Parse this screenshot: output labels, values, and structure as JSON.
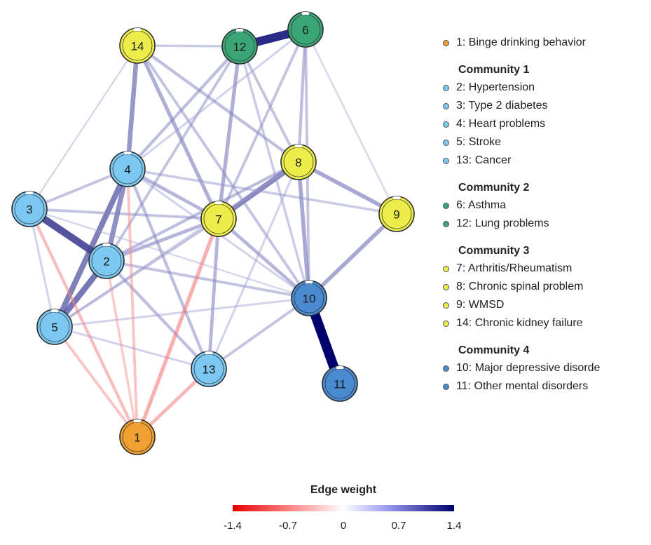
{
  "nodes": [
    {
      "id": "1",
      "label": "1",
      "color": "#f0a030"
    },
    {
      "id": "2",
      "label": "2",
      "color": "#7cc8f2"
    },
    {
      "id": "3",
      "label": "3",
      "color": "#7cc8f2"
    },
    {
      "id": "4",
      "label": "4",
      "color": "#7cc8f2"
    },
    {
      "id": "5",
      "label": "5",
      "color": "#7cc8f2"
    },
    {
      "id": "6",
      "label": "6",
      "color": "#3aa678"
    },
    {
      "id": "7",
      "label": "7",
      "color": "#ecec4a"
    },
    {
      "id": "8",
      "label": "8",
      "color": "#ecec4a"
    },
    {
      "id": "9",
      "label": "9",
      "color": "#ecec4a"
    },
    {
      "id": "10",
      "label": "10",
      "color": "#4a8ad0"
    },
    {
      "id": "11",
      "label": "11",
      "color": "#4a8ad0"
    },
    {
      "id": "12",
      "label": "12",
      "color": "#3aa678"
    },
    {
      "id": "13",
      "label": "13",
      "color": "#7cc8f2"
    },
    {
      "id": "14",
      "label": "14",
      "color": "#ecec4a"
    }
  ],
  "edges": [
    {
      "a": "10",
      "b": "11",
      "w": 1.4
    },
    {
      "a": "12",
      "b": "6",
      "w": 1.2
    },
    {
      "a": "3",
      "b": "2",
      "w": 1.0
    },
    {
      "a": "2",
      "b": "5",
      "w": 0.8
    },
    {
      "a": "4",
      "b": "5",
      "w": 0.75
    },
    {
      "a": "7",
      "b": "8",
      "w": 0.7
    },
    {
      "a": "2",
      "b": "4",
      "w": 0.65
    },
    {
      "a": "14",
      "b": "4",
      "w": 0.6
    },
    {
      "a": "8",
      "b": "9",
      "w": 0.5
    },
    {
      "a": "9",
      "b": "10",
      "w": 0.5
    },
    {
      "a": "8",
      "b": "10",
      "w": 0.5
    },
    {
      "a": "14",
      "b": "7",
      "w": 0.45
    },
    {
      "a": "12",
      "b": "7",
      "w": 0.45
    },
    {
      "a": "4",
      "b": "7",
      "w": 0.4
    },
    {
      "a": "2",
      "b": "7",
      "w": 0.4
    },
    {
      "a": "2",
      "b": "8",
      "w": 0.35
    },
    {
      "a": "7",
      "b": "10",
      "w": 0.4
    },
    {
      "a": "7",
      "b": "13",
      "w": 0.4
    },
    {
      "a": "12",
      "b": "4",
      "w": 0.35
    },
    {
      "a": "6",
      "b": "8",
      "w": 0.35
    },
    {
      "a": "6",
      "b": "10",
      "w": 0.3
    },
    {
      "a": "14",
      "b": "8",
      "w": 0.35
    },
    {
      "a": "14",
      "b": "10",
      "w": 0.3
    },
    {
      "a": "4",
      "b": "13",
      "w": 0.35
    },
    {
      "a": "2",
      "b": "13",
      "w": 0.35
    },
    {
      "a": "3",
      "b": "4",
      "w": 0.3
    },
    {
      "a": "3",
      "b": "7",
      "w": 0.3
    },
    {
      "a": "5",
      "b": "7",
      "w": 0.3
    },
    {
      "a": "2",
      "b": "10",
      "w": 0.3
    },
    {
      "a": "13",
      "b": "10",
      "w": 0.3
    },
    {
      "a": "4",
      "b": "9",
      "w": 0.25
    },
    {
      "a": "12",
      "b": "8",
      "w": 0.3
    },
    {
      "a": "6",
      "b": "7",
      "w": 0.3
    },
    {
      "a": "12",
      "b": "10",
      "w": 0.25
    },
    {
      "a": "14",
      "b": "12",
      "w": 0.25
    },
    {
      "a": "12",
      "b": "2",
      "w": 0.3
    },
    {
      "a": "6",
      "b": "4",
      "w": 0.2
    },
    {
      "a": "14",
      "b": "3",
      "w": 0.15
    },
    {
      "a": "3",
      "b": "5",
      "w": 0.2
    },
    {
      "a": "5",
      "b": "10",
      "w": 0.2
    },
    {
      "a": "3",
      "b": "10",
      "w": 0.15
    },
    {
      "a": "4",
      "b": "10",
      "w": 0.2
    },
    {
      "a": "5",
      "b": "13",
      "w": 0.2
    },
    {
      "a": "13",
      "b": "8",
      "w": 0.2
    },
    {
      "a": "8",
      "b": "5",
      "w": 0.15
    },
    {
      "a": "6",
      "b": "9",
      "w": 0.15
    },
    {
      "a": "1",
      "b": "7",
      "w": -0.45
    },
    {
      "a": "1",
      "b": "13",
      "w": -0.4
    },
    {
      "a": "1",
      "b": "3",
      "w": -0.35
    },
    {
      "a": "1",
      "b": "4",
      "w": -0.3
    },
    {
      "a": "1",
      "b": "5",
      "w": -0.3
    },
    {
      "a": "1",
      "b": "2",
      "w": -0.25
    }
  ],
  "legend": {
    "top_item": {
      "text": "1: Binge drinking behavior",
      "color": "#f0a030"
    },
    "groups": [
      {
        "heading": "Community 1",
        "color": "#7cc8f2",
        "items": [
          "2: Hypertension",
          "3: Type 2 diabetes",
          "4: Heart problems",
          "5: Stroke",
          "13: Cancer"
        ]
      },
      {
        "heading": "Community 2",
        "color": "#3aa678",
        "items": [
          "6: Asthma",
          "12: Lung problems"
        ]
      },
      {
        "heading": "Community 3",
        "color": "#ecec4a",
        "items": [
          "7: Arthritis/Rheumatism",
          "8: Chronic spinal problem",
          "9: WMSD",
          "14: Chronic kidney failure"
        ]
      },
      {
        "heading": "Community 4",
        "color": "#4a8ad0",
        "items": [
          "10: Major depressive disorde",
          "11: Other mental disorders"
        ]
      }
    ]
  },
  "scale": {
    "title": "Edge weight",
    "ticks": [
      "-1.4",
      "-0.7",
      "0",
      "0.7",
      "1.4"
    ],
    "min": -1.4,
    "max": 1.4,
    "neg_color": "#e60000",
    "pos_color": "#00006e"
  }
}
